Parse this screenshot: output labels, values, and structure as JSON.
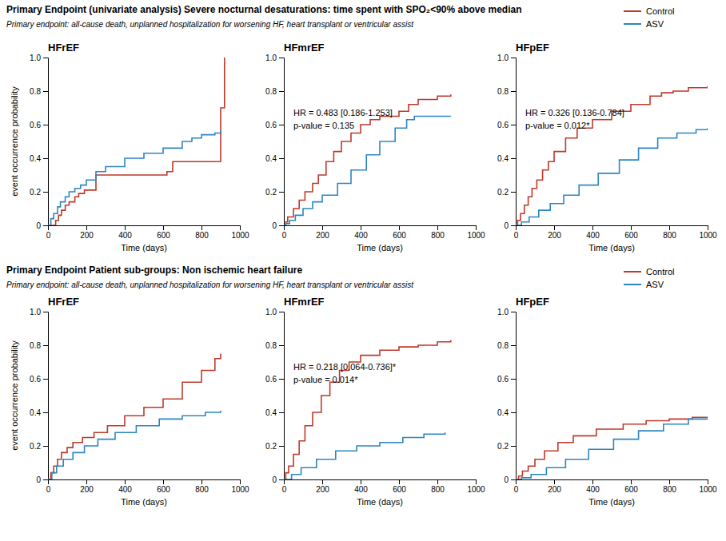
{
  "chart_data": [
    {
      "type": "step",
      "title": "Primary Endpoint (univariate analysis) Severe nocturnal desaturations: time spent with SPO₂<90% above median",
      "subtitle": "Primary endpoint: all-cause death, unplanned hospitalization for worsening HF, heart transplant or ventricular assist",
      "legend": "upper right",
      "panels": [
        {
          "title": "HFrEF",
          "x_label": "Time (days)",
          "y_label": "event occurrence probability",
          "grid": false,
          "xlim": [
            0,
            1000
          ],
          "xticks": [
            0,
            200,
            400,
            600,
            800,
            1000
          ],
          "ylim": [
            0,
            1.0
          ],
          "yticks": [
            0,
            0.2,
            0.4,
            0.6,
            0.8,
            {
              "value": 1.0,
              "label": "1.0"
            }
          ],
          "series": [
            {
              "name": "Control",
              "color": "#c0392b",
              "x": [
                0,
                25,
                40,
                55,
                70,
                90,
                110,
                140,
                160,
                190,
                210,
                250,
                600,
                620,
                650,
                870,
                900,
                920
              ],
              "values": [
                0,
                0.0,
                0.03,
                0.06,
                0.09,
                0.12,
                0.14,
                0.17,
                0.19,
                0.21,
                0.21,
                0.3,
                0.3,
                0.32,
                0.38,
                0.38,
                0.7,
                1.0
              ]
            },
            {
              "name": "ASV",
              "color": "#2e86c1",
              "x": [
                0,
                15,
                30,
                50,
                65,
                90,
                110,
                140,
                170,
                200,
                250,
                300,
                400,
                500,
                600,
                700,
                750,
                800,
                870,
                900
              ],
              "values": [
                0,
                0.04,
                0.07,
                0.11,
                0.14,
                0.17,
                0.2,
                0.22,
                0.24,
                0.27,
                0.32,
                0.35,
                0.4,
                0.43,
                0.46,
                0.5,
                0.52,
                0.54,
                0.55,
                0.57
              ]
            }
          ]
        },
        {
          "title": "HFmrEF",
          "x_label": "Time (days)",
          "grid": false,
          "annotation": "HR = 0.483 [0.186-1.253]\np-value = 0.135",
          "xlim": [
            0,
            1000
          ],
          "xticks": [
            0,
            200,
            400,
            600,
            800,
            1000
          ],
          "ylim": [
            0,
            1.0
          ],
          "yticks": [
            0,
            0.2,
            0.4,
            0.6,
            0.8,
            {
              "value": 1.0,
              "label": "1.0"
            }
          ],
          "series": [
            {
              "name": "Control",
              "color": "#c0392b",
              "x": [
                0,
                10,
                20,
                50,
                80,
                110,
                150,
                180,
                220,
                260,
                300,
                350,
                400,
                450,
                500,
                600,
                650,
                700,
                800,
                870
              ],
              "values": [
                0,
                0.02,
                0.05,
                0.1,
                0.15,
                0.2,
                0.25,
                0.3,
                0.38,
                0.44,
                0.5,
                0.55,
                0.6,
                0.63,
                0.65,
                0.68,
                0.72,
                0.75,
                0.77,
                0.78
              ]
            },
            {
              "name": "ASV",
              "color": "#2e86c1",
              "x": [
                0,
                10,
                30,
                60,
                100,
                150,
                200,
                280,
                350,
                430,
                500,
                580,
                640,
                680,
                840,
                870
              ],
              "values": [
                0,
                0.01,
                0.03,
                0.06,
                0.1,
                0.14,
                0.18,
                0.25,
                0.33,
                0.42,
                0.5,
                0.58,
                0.63,
                0.65,
                0.65,
                0.65
              ]
            }
          ]
        },
        {
          "title": "HFpEF",
          "x_label": "Time (days)",
          "grid": false,
          "annotation": "HR = 0.326 [0.136-0.784]\np-value = 0.012*",
          "xlim": [
            0,
            1000
          ],
          "xticks": [
            0,
            200,
            400,
            600,
            800,
            1000
          ],
          "ylim": [
            0,
            1.0
          ],
          "yticks": [
            0,
            0.2,
            0.4,
            0.6,
            0.8,
            {
              "value": 1.0,
              "label": "1.0"
            }
          ],
          "series": [
            {
              "name": "Control",
              "color": "#c0392b",
              "x": [
                0,
                10,
                25,
                45,
                65,
                85,
                110,
                140,
                170,
                200,
                260,
                320,
                400,
                500,
                600,
                700,
                760,
                820,
                900,
                1000
              ],
              "values": [
                0,
                0.03,
                0.07,
                0.12,
                0.17,
                0.22,
                0.27,
                0.33,
                0.38,
                0.44,
                0.52,
                0.58,
                0.63,
                0.68,
                0.72,
                0.77,
                0.79,
                0.8,
                0.82,
                0.83
              ]
            },
            {
              "name": "ASV",
              "color": "#2e86c1",
              "x": [
                0,
                30,
                70,
                120,
                180,
                250,
                330,
                430,
                540,
                640,
                740,
                840,
                940,
                1000
              ],
              "values": [
                0,
                0.02,
                0.05,
                0.09,
                0.13,
                0.18,
                0.24,
                0.31,
                0.39,
                0.46,
                0.52,
                0.55,
                0.57,
                0.58
              ]
            }
          ]
        }
      ]
    },
    {
      "type": "step",
      "title": "Primary Endpoint Patient sub-groups: Non ischemic heart failure",
      "subtitle": "Primary endpoint: all-cause death, unplanned hospitalization for worsening HF, heart transplant or ventricular assist",
      "legend": "upper right",
      "panels": [
        {
          "title": "HFrEF",
          "x_label": "Time (days)",
          "y_label": "event occurrence probability",
          "grid": false,
          "xlim": [
            0,
            1000
          ],
          "xticks": [
            0,
            200,
            400,
            600,
            800,
            1000
          ],
          "ylim": [
            0,
            1.0
          ],
          "yticks": [
            0,
            0.2,
            0.4,
            0.6,
            0.8,
            {
              "value": 1.0,
              "label": "1.0"
            }
          ],
          "series": [
            {
              "name": "Control",
              "color": "#c0392b",
              "x": [
                0,
                15,
                30,
                50,
                70,
                100,
                130,
                180,
                240,
                310,
                400,
                500,
                600,
                700,
                800,
                870,
                900
              ],
              "values": [
                0,
                0.04,
                0.08,
                0.12,
                0.16,
                0.19,
                0.22,
                0.25,
                0.28,
                0.32,
                0.38,
                0.43,
                0.48,
                0.58,
                0.65,
                0.72,
                0.75
              ]
            },
            {
              "name": "ASV",
              "color": "#2e86c1",
              "x": [
                0,
                20,
                45,
                80,
                130,
                190,
                260,
                350,
                460,
                580,
                700,
                820,
                900
              ],
              "values": [
                0,
                0.04,
                0.08,
                0.12,
                0.16,
                0.2,
                0.24,
                0.28,
                0.32,
                0.36,
                0.38,
                0.4,
                0.41
              ]
            }
          ]
        },
        {
          "title": "HFmrEF",
          "x_label": "Time (days)",
          "grid": false,
          "annotation": "HR = 0.218 [0.064-0.736]*\np-value = 0.014*",
          "xlim": [
            0,
            1000
          ],
          "xticks": [
            0,
            200,
            400,
            600,
            800,
            1000
          ],
          "ylim": [
            0,
            1.0
          ],
          "yticks": [
            0,
            0.2,
            0.4,
            0.6,
            0.8,
            {
              "value": 1.0,
              "label": "1.0"
            }
          ],
          "series": [
            {
              "name": "Control",
              "color": "#c0392b",
              "x": [
                0,
                10,
                25,
                50,
                80,
                110,
                150,
                195,
                240,
                290,
                340,
                400,
                500,
                600,
                700,
                800,
                870
              ],
              "values": [
                0,
                0.04,
                0.08,
                0.15,
                0.23,
                0.32,
                0.4,
                0.5,
                0.58,
                0.65,
                0.7,
                0.74,
                0.77,
                0.79,
                0.8,
                0.82,
                0.83
              ]
            },
            {
              "name": "ASV",
              "color": "#2e86c1",
              "x": [
                0,
                40,
                90,
                170,
                270,
                380,
                500,
                620,
                730,
                840
              ],
              "values": [
                0,
                0.03,
                0.07,
                0.12,
                0.17,
                0.2,
                0.22,
                0.25,
                0.27,
                0.28
              ]
            }
          ]
        },
        {
          "title": "HFpEF",
          "x_label": "Time (days)",
          "grid": false,
          "xlim": [
            0,
            1000
          ],
          "xticks": [
            0,
            200,
            400,
            600,
            800,
            1000
          ],
          "ylim": [
            0,
            1.0
          ],
          "yticks": [
            0,
            0.2,
            0.4,
            0.6,
            0.8,
            {
              "value": 1.0,
              "label": "1.0"
            }
          ],
          "series": [
            {
              "name": "Control",
              "color": "#c0392b",
              "x": [
                0,
                15,
                35,
                65,
                100,
                150,
                220,
                300,
                420,
                560,
                680,
                800,
                920,
                1000
              ],
              "values": [
                0,
                0.02,
                0.05,
                0.08,
                0.12,
                0.17,
                0.22,
                0.26,
                0.3,
                0.33,
                0.35,
                0.36,
                0.37,
                0.37
              ]
            },
            {
              "name": "ASV",
              "color": "#2e86c1",
              "x": [
                0,
                30,
                80,
                160,
                260,
                380,
                510,
                640,
                770,
                900,
                1000
              ],
              "values": [
                0,
                0.01,
                0.03,
                0.07,
                0.12,
                0.18,
                0.24,
                0.29,
                0.33,
                0.36,
                0.37
              ]
            }
          ]
        }
      ]
    }
  ]
}
